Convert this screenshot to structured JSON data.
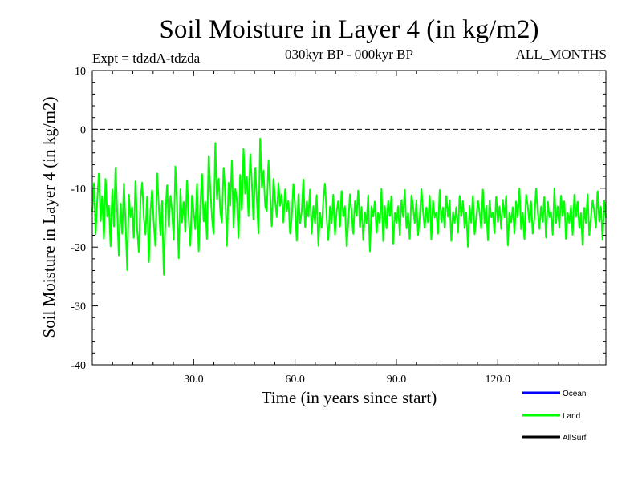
{
  "chart_data": {
    "type": "line",
    "title": "Soil Moisture in Layer 4 (in kg/m2)",
    "subtitle_left": "Expt = tdzdA-tdzda",
    "subtitle_center": "030kyr BP - 000kyr BP",
    "subtitle_right": "ALL_MONTHS",
    "xlabel": "Time (in years since start)",
    "ylabel": "Soil Moisture in Layer 4 (in kg/m2)",
    "xlim": [
      0,
      152
    ],
    "ylim": [
      -40,
      10
    ],
    "x_ticks": [
      30,
      60,
      90,
      120
    ],
    "x_tick_labels": [
      "30.0",
      "60.0",
      "90.0",
      "120.0"
    ],
    "y_ticks": [
      -40,
      -30,
      -20,
      -10,
      0,
      10
    ],
    "y_tick_labels": [
      "-40",
      "-30",
      "-20",
      "-10",
      "0",
      "10"
    ],
    "zero_line": 0,
    "samples_per_year": 12,
    "series": [
      {
        "name": "Land",
        "color": "#00ff00",
        "values": [
          -14,
          -9,
          -18,
          -12,
          -7,
          -16,
          -11,
          -19,
          -8,
          -15,
          -13,
          -20,
          -10,
          -17,
          -6,
          -14,
          -22,
          -12,
          -18,
          -9,
          -16,
          -24,
          -11,
          -15,
          -13,
          -19,
          -8,
          -17,
          -21,
          -12,
          -9,
          -15,
          -18,
          -11,
          -23,
          -14,
          -10,
          -16,
          -20,
          -7,
          -13,
          -18,
          -12,
          -25,
          -15,
          -9,
          -17,
          -11,
          -14,
          -19,
          -6,
          -13,
          -22,
          -10,
          -16,
          -12,
          -18,
          -8,
          -15,
          -20,
          -11,
          -14,
          -17,
          -9,
          -21,
          -13,
          -7,
          -16,
          -12,
          -19,
          -4,
          -10,
          -15,
          -18,
          -2,
          -12,
          -8,
          -14,
          -16,
          -6,
          -11,
          -20,
          -9,
          -13,
          -5,
          -17,
          -10,
          -12,
          -19,
          -7,
          -14,
          -3,
          -11,
          -8,
          -15,
          -4,
          -9,
          -16,
          -6,
          -12,
          -18,
          -1,
          -10,
          -7,
          -13,
          -14,
          -5,
          -11,
          -17,
          -8,
          -12,
          -15,
          -9,
          -13,
          -11,
          -16,
          -10,
          -14,
          -12,
          -18,
          -15,
          -9,
          -13,
          -19,
          -11,
          -16,
          -14,
          -8,
          -17,
          -12,
          -15,
          -10,
          -18,
          -13,
          -16,
          -11,
          -20,
          -14,
          -17,
          -12,
          -9,
          -15,
          -19,
          -13,
          -16,
          -11,
          -18,
          -14,
          -12,
          -17,
          -10,
          -15,
          -13,
          -20,
          -16,
          -11,
          -14,
          -18,
          -12,
          -15,
          -10,
          -17,
          -13,
          -19,
          -14,
          -16,
          -11,
          -21,
          -13,
          -15,
          -12,
          -18,
          -14,
          -16,
          -10,
          -19,
          -13,
          -17,
          -12,
          -15,
          -11,
          -20,
          -14,
          -16,
          -13,
          -18,
          -12,
          -15,
          -10,
          -17,
          -14,
          -19,
          -11,
          -13,
          -16,
          -12,
          -18,
          -15,
          -10,
          -14,
          -17,
          -13,
          -16,
          -11,
          -19,
          -12,
          -15,
          -14,
          -18,
          -10,
          -16,
          -13,
          -17,
          -11,
          -15,
          -12,
          -19,
          -14,
          -16,
          -13,
          -18,
          -11,
          -15,
          -12,
          -17,
          -14,
          -20,
          -13,
          -16,
          -11,
          -18,
          -15,
          -12,
          -14,
          -17,
          -10,
          -16,
          -13,
          -19,
          -12,
          -15,
          -14,
          -18,
          -11,
          -16,
          -13,
          -17,
          -12,
          -15,
          -11,
          -20,
          -14,
          -16,
          -13,
          -18,
          -12,
          -15,
          -10,
          -17,
          -14,
          -19,
          -11,
          -13,
          -16,
          -12,
          -18,
          -15,
          -10,
          -14,
          -17,
          -13,
          -16,
          -11,
          -19,
          -12,
          -15,
          -14,
          -18,
          -10,
          -16,
          -13,
          -17,
          -11,
          -15,
          -12,
          -19,
          -14,
          -16,
          -13,
          -18,
          -11,
          -15,
          -12,
          -17,
          -14,
          -20,
          -13,
          -16,
          -11,
          -18,
          -15,
          -12,
          -14,
          -17,
          -10,
          -16,
          -13,
          -19,
          -12,
          -15
        ]
      }
    ],
    "legend": [
      {
        "name": "Ocean",
        "color": "#0000ff"
      },
      {
        "name": "Land",
        "color": "#00ff00"
      },
      {
        "name": "AllSurf",
        "color": "#000000"
      }
    ]
  }
}
